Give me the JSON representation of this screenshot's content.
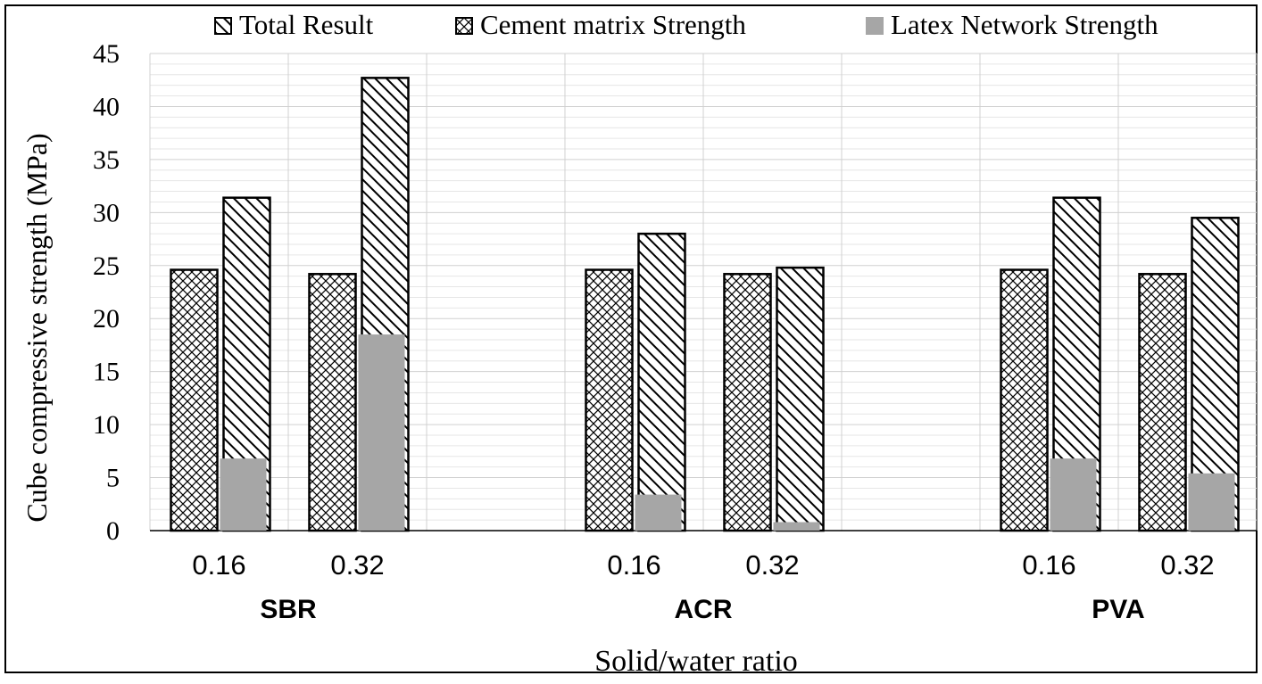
{
  "chart_data": {
    "type": "bar",
    "title": "",
    "xlabel": "Solid/water ratio",
    "ylabel": "Cube compressive strength (MPa)",
    "ylim": [
      0,
      45
    ],
    "yticks": [
      "0",
      "5",
      "10",
      "15",
      "20",
      "25",
      "30",
      "35",
      "40",
      "45"
    ],
    "grid": true,
    "legend_position": "top",
    "groups": [
      {
        "name": "SBR",
        "categories": [
          "0.16",
          "0.32"
        ]
      },
      {
        "name": "ACR",
        "categories": [
          "0.16",
          "0.32"
        ]
      },
      {
        "name": "PVA",
        "categories": [
          "0.16",
          "0.32"
        ]
      }
    ],
    "series": [
      {
        "name": "Total Result",
        "pattern": "diagonal-hatch",
        "color": "#000000",
        "values": [
          31.4,
          42.7,
          28.0,
          24.8,
          31.4,
          29.5
        ]
      },
      {
        "name": "Cement matrix Strength",
        "pattern": "crosshatch",
        "color": "#000000",
        "values": [
          24.6,
          24.2,
          24.6,
          24.2,
          24.6,
          24.2
        ]
      },
      {
        "name": "Latex Network Strength",
        "pattern": "solid",
        "color": "#a6a6a6",
        "values": [
          6.8,
          18.5,
          3.4,
          0.8,
          6.8,
          5.4
        ]
      }
    ]
  }
}
